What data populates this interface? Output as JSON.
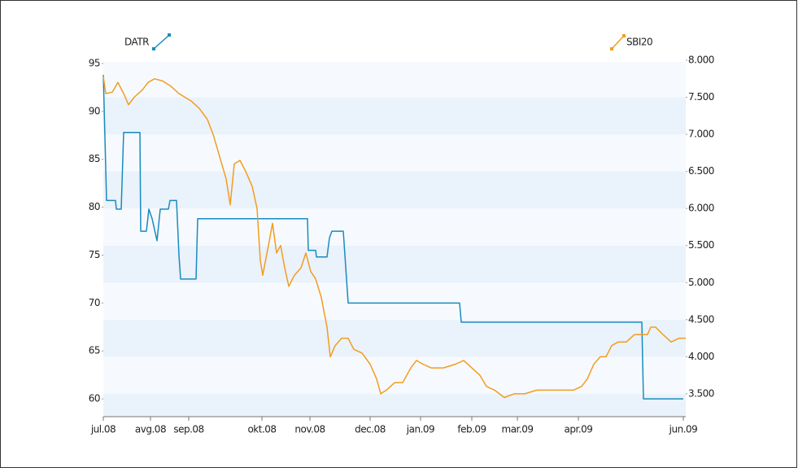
{
  "chart_data": {
    "type": "line",
    "xlim": [
      0,
      716
    ],
    "xticks": [
      {
        "value": 0,
        "label": "jul.08"
      },
      {
        "value": 58,
        "label": "avg.08"
      },
      {
        "value": 105,
        "label": "sep.08"
      },
      {
        "value": 195,
        "label": "okt.08"
      },
      {
        "value": 254,
        "label": "nov.08"
      },
      {
        "value": 328,
        "label": "dec.08"
      },
      {
        "value": 390,
        "label": "jan.09"
      },
      {
        "value": 453,
        "label": "feb.09"
      },
      {
        "value": 509,
        "label": "mar.09"
      },
      {
        "value": 584,
        "label": "apr.09"
      },
      {
        "value": 713,
        "label": "jun.09"
      }
    ],
    "ylim": [
      58.14,
      95.17
    ],
    "yticks": [
      60,
      65,
      70,
      75,
      80,
      85,
      90,
      95
    ],
    "y2lim": [
      3192,
      7978
    ],
    "y2ticks": [
      {
        "value": 3500,
        "label": "3.500"
      },
      {
        "value": 4000,
        "label": "4.000"
      },
      {
        "value": 4500,
        "label": "4.500"
      },
      {
        "value": 5000,
        "label": "5.000"
      },
      {
        "value": 5500,
        "label": "5.500"
      },
      {
        "value": 6000,
        "label": "6.000"
      },
      {
        "value": 6500,
        "label": "6.500"
      },
      {
        "value": 7000,
        "label": "7.000"
      },
      {
        "value": 7500,
        "label": "7.500"
      },
      {
        "value": 8000,
        "label": "8.000"
      }
    ],
    "series": [
      {
        "name": "DATR",
        "color": "#1a8bbf",
        "axis": "y",
        "x": [
          0,
          4,
          15,
          16,
          22,
          25,
          45,
          46,
          53,
          56,
          60,
          66,
          70,
          80,
          82,
          90,
          93,
          95,
          114,
          116,
          251,
          252,
          261,
          262,
          275,
          278,
          281,
          295,
          301,
          438,
          440,
          662,
          664,
          713
        ],
        "values": [
          93.8,
          80.7,
          80.7,
          79.8,
          79.8,
          87.8,
          87.8,
          77.5,
          77.5,
          79.8,
          78.8,
          76.5,
          79.8,
          79.8,
          80.7,
          80.7,
          75,
          72.5,
          72.5,
          78.8,
          78.8,
          75.5,
          75.5,
          74.8,
          74.8,
          76.8,
          77.5,
          77.5,
          70,
          70,
          68,
          68,
          60,
          60
        ]
      },
      {
        "name": "SBI20",
        "color": "#f39c1f",
        "axis": "y2",
        "x": [
          0,
          3,
          11,
          18,
          25,
          31,
          38,
          48,
          55,
          63,
          73,
          83,
          93,
          108,
          118,
          128,
          135,
          143,
          151,
          156,
          161,
          168,
          175,
          183,
          189,
          193,
          196,
          203,
          208,
          213,
          218,
          223,
          228,
          235,
          243,
          249,
          255,
          261,
          268,
          275,
          279,
          285,
          293,
          301,
          308,
          318,
          328,
          336,
          341,
          348,
          358,
          368,
          378,
          385,
          393,
          403,
          418,
          433,
          443,
          453,
          463,
          471,
          481,
          493,
          505,
          518,
          533,
          548,
          563,
          578,
          588,
          595,
          603,
          611,
          618,
          625,
          633,
          643,
          653,
          663,
          669,
          673,
          679,
          688,
          698,
          708,
          716
        ],
        "values": [
          7780,
          7550,
          7570,
          7700,
          7550,
          7400,
          7500,
          7600,
          7700,
          7750,
          7720,
          7650,
          7550,
          7450,
          7350,
          7200,
          7000,
          6700,
          6400,
          6050,
          6600,
          6650,
          6500,
          6300,
          6000,
          5300,
          5100,
          5500,
          5800,
          5400,
          5500,
          5200,
          4950,
          5100,
          5200,
          5400,
          5150,
          5050,
          4800,
          4400,
          4000,
          4150,
          4250,
          4250,
          4100,
          4050,
          3900,
          3700,
          3500,
          3550,
          3650,
          3650,
          3850,
          3950,
          3900,
          3850,
          3850,
          3900,
          3950,
          3850,
          3750,
          3600,
          3550,
          3450,
          3500,
          3500,
          3550,
          3550,
          3550,
          3550,
          3600,
          3700,
          3900,
          4000,
          4000,
          4150,
          4200,
          4200,
          4300,
          4300,
          4300,
          4400,
          4400,
          4300,
          4200,
          4250,
          4250
        ]
      }
    ]
  }
}
